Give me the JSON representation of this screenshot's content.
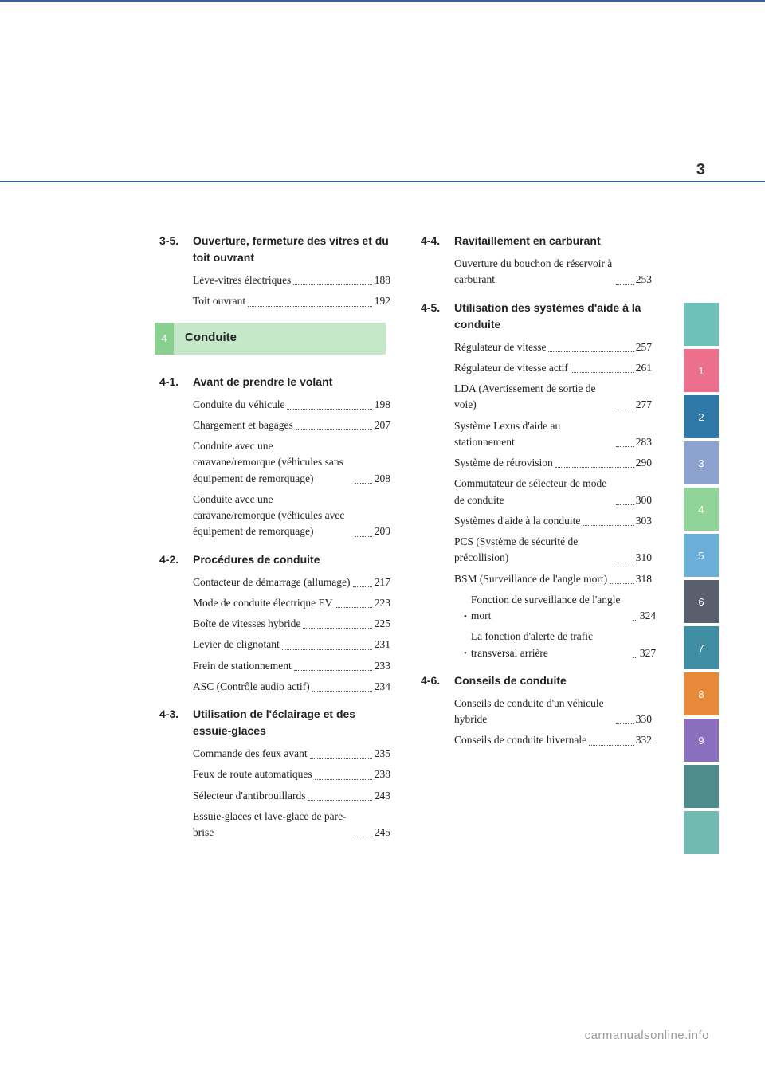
{
  "page_number": "3",
  "footer_text": "carmanualsonline.info",
  "tabs": [
    {
      "label": "",
      "color": "#6fc0b8"
    },
    {
      "label": "1",
      "color": "#ec6f8e"
    },
    {
      "label": "2",
      "color": "#2f78a8"
    },
    {
      "label": "3",
      "color": "#8ea2d0"
    },
    {
      "label": "4",
      "color": "#91d49a"
    },
    {
      "label": "5",
      "color": "#6aafd7"
    },
    {
      "label": "6",
      "color": "#5a5f6d"
    },
    {
      "label": "7",
      "color": "#3f8ea4"
    },
    {
      "label": "8",
      "color": "#e68a3a"
    },
    {
      "label": "9",
      "color": "#8a6fbf"
    },
    {
      "label": "",
      "color": "#4f8d8d"
    },
    {
      "label": "",
      "color": "#6fb9b1"
    }
  ],
  "chapter_band": {
    "chip": "4",
    "title": "Conduite"
  },
  "left": {
    "sections": [
      {
        "num": "3-5.",
        "title": "Ouverture, fermeture des vitres et du toit ouvrant",
        "entries": [
          {
            "label": "Lève-vitres électriques",
            "page": "188"
          },
          {
            "label": "Toit ouvrant",
            "page": "192"
          }
        ]
      }
    ],
    "post_band_sections": [
      {
        "num": "4-1.",
        "title": "Avant de prendre le volant",
        "entries": [
          {
            "label": "Conduite du véhicule",
            "page": "198"
          },
          {
            "label": "Chargement et bagages",
            "page": "207"
          },
          {
            "label": "Conduite avec une caravane/remorque (véhicules sans équipement de remorquage)",
            "page": "208"
          },
          {
            "label": "Conduite avec une caravane/remorque (véhicules avec équipement de remorquage)",
            "page": "209"
          }
        ]
      },
      {
        "num": "4-2.",
        "title": "Procédures de conduite",
        "entries": [
          {
            "label": "Contacteur de démarrage (allumage)",
            "page": "217"
          },
          {
            "label": "Mode de conduite électrique EV",
            "page": "223"
          },
          {
            "label": "Boîte de vitesses hybride",
            "page": "225"
          },
          {
            "label": "Levier de clignotant",
            "page": "231"
          },
          {
            "label": "Frein de stationnement",
            "page": "233"
          },
          {
            "label": "ASC (Contrôle audio actif)",
            "page": "234"
          }
        ]
      },
      {
        "num": "4-3.",
        "title": "Utilisation de l'éclairage et des essuie-glaces",
        "entries": [
          {
            "label": "Commande des feux avant",
            "page": "235"
          },
          {
            "label": "Feux de route automatiques",
            "page": "238"
          },
          {
            "label": "Sélecteur d'antibrouillards",
            "page": "243"
          },
          {
            "label": "Essuie-glaces et lave-glace de pare-brise",
            "page": "245"
          }
        ]
      }
    ]
  },
  "right": {
    "sections": [
      {
        "num": "4-4.",
        "title": "Ravitaillement en carburant",
        "entries": [
          {
            "label": "Ouverture du bouchon de réservoir à carburant",
            "page": "253"
          }
        ]
      },
      {
        "num": "4-5.",
        "title": "Utilisation des systèmes d'aide à la conduite",
        "entries": [
          {
            "label": "Régulateur de vitesse",
            "page": "257"
          },
          {
            "label": "Régulateur de vitesse actif",
            "page": "261"
          },
          {
            "label": "LDA (Avertissement de sortie de voie)",
            "page": "277"
          },
          {
            "label": "Système Lexus d'aide au stationnement",
            "page": "283"
          },
          {
            "label": "Système de rétrovision",
            "page": "290"
          },
          {
            "label": "Commutateur de sélecteur de mode de conduite",
            "page": "300"
          },
          {
            "label": "Systèmes d'aide à la conduite",
            "page": "303"
          },
          {
            "label": "PCS (Système de sécurité de précollision)",
            "page": "310"
          },
          {
            "label": "BSM (Surveillance de l'angle mort)",
            "page": "318"
          },
          {
            "label": "Fonction de surveillance de l'angle mort",
            "page": "324",
            "sub": true
          },
          {
            "label": "La fonction d'alerte de trafic transversal arrière",
            "page": "327",
            "sub": true
          }
        ]
      },
      {
        "num": "4-6.",
        "title": "Conseils de conduite",
        "entries": [
          {
            "label": "Conseils de conduite d'un véhicule hybride",
            "page": "330"
          },
          {
            "label": "Conseils de conduite hivernale",
            "page": "332"
          }
        ]
      }
    ]
  }
}
